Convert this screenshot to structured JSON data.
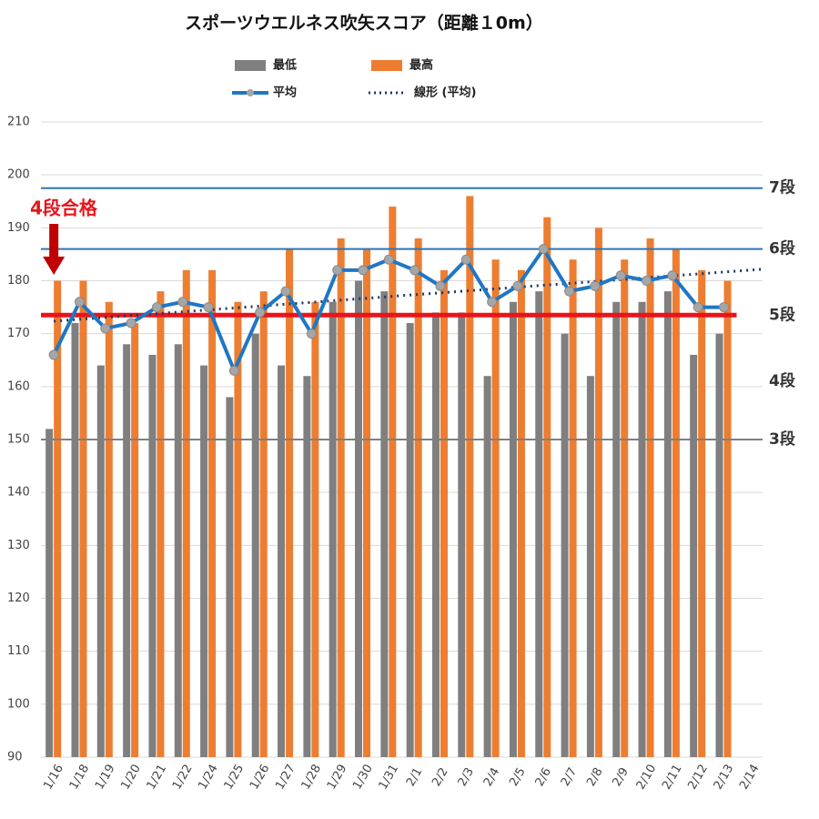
{
  "chart_data": {
    "type": "bar-line",
    "title": "スポーツウエルネス吹矢スコア（距離１0m）",
    "categories": [
      "1/16",
      "1/18",
      "1/19",
      "1/20",
      "1/21",
      "1/22",
      "1/24",
      "1/25",
      "1/26",
      "1/27",
      "1/28",
      "1/29",
      "1/30",
      "1/31",
      "2/1",
      "2/2",
      "2/3",
      "2/4",
      "2/5",
      "2/6",
      "2/7",
      "2/8",
      "2/9",
      "2/10",
      "2/11",
      "2/12",
      "2/13",
      "2/14"
    ],
    "series": [
      {
        "name": "最低",
        "color": "#7f7f7f",
        "kind": "bar",
        "values": [
          152,
          172,
          164,
          168,
          166,
          168,
          164,
          158,
          170,
          164,
          162,
          176,
          180,
          178,
          172,
          174,
          174,
          162,
          176,
          178,
          170,
          162,
          176,
          176,
          178,
          166,
          170,
          null
        ]
      },
      {
        "name": "最高",
        "color": "#ed7d31",
        "kind": "bar",
        "values": [
          180,
          180,
          176,
          172,
          178,
          182,
          182,
          176,
          178,
          186,
          176,
          188,
          186,
          194,
          188,
          182,
          196,
          184,
          182,
          192,
          184,
          190,
          184,
          188,
          186,
          182,
          180,
          null
        ]
      },
      {
        "name": "平均",
        "color": "#1f77c4",
        "kind": "line",
        "values": [
          166,
          176,
          171,
          172,
          175,
          176,
          175,
          163,
          174,
          178,
          170,
          182,
          182,
          184,
          182,
          179,
          184,
          176,
          179,
          186,
          178,
          179,
          181,
          180,
          181,
          175,
          175,
          null
        ]
      }
    ],
    "trendline": {
      "name": "線形 (平均)",
      "color": "#1f3864"
    },
    "ylim": [
      90,
      210
    ],
    "yticks": [
      90,
      100,
      110,
      120,
      130,
      140,
      150,
      160,
      170,
      180,
      190,
      200,
      210
    ],
    "grid": true,
    "reference_lines": [
      {
        "label": "7段",
        "value": 197.5,
        "color": "#2e75b6",
        "label_color": "#111"
      },
      {
        "label": "6段",
        "value": 186,
        "color": "#2e75b6",
        "label_color": "#111"
      },
      {
        "label": "5段",
        "value": 173.5,
        "color": "#e8141b",
        "label_color": "#2e75b6"
      },
      {
        "label": "4段",
        "value": 161,
        "label_color": "#111"
      },
      {
        "label": "3段",
        "value": 150,
        "color": "#7f7f7f",
        "label_color": "#111"
      }
    ],
    "annotation": "4段合格"
  }
}
